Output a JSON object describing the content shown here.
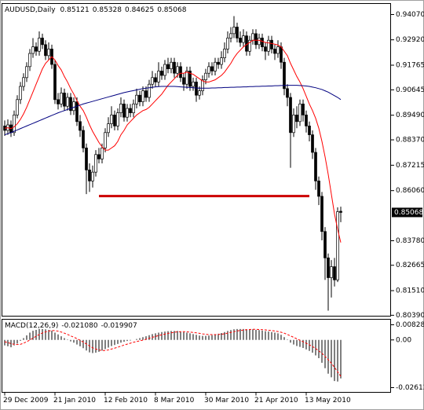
{
  "chart_data": {
    "type": "candlestick",
    "title": "AUDUSD,Daily",
    "categories": [
      "29 Dec 2009",
      null,
      null,
      null,
      null,
      null,
      null,
      null,
      null,
      null,
      null,
      null,
      null,
      null,
      null,
      null,
      "21 Jan 2010",
      null,
      null,
      null,
      null,
      null,
      null,
      null,
      null,
      null,
      null,
      null,
      null,
      null,
      null,
      null,
      "12 Feb 2010",
      null,
      null,
      null,
      null,
      null,
      null,
      null,
      null,
      null,
      null,
      null,
      null,
      null,
      null,
      null,
      "8 Mar 2010",
      null,
      null,
      null,
      null,
      null,
      null,
      null,
      null,
      null,
      null,
      null,
      null,
      null,
      null,
      null,
      "30 Mar 2010",
      null,
      null,
      null,
      null,
      null,
      null,
      null,
      null,
      null,
      null,
      null,
      null,
      null,
      null,
      null,
      "21 Apr 2010",
      null,
      null,
      null,
      null,
      null,
      null,
      null,
      null,
      null,
      null,
      null,
      null,
      null,
      null,
      null,
      "13 May 2010",
      null,
      null,
      null,
      null,
      null,
      null,
      null,
      null,
      null,
      null,
      null
    ],
    "ohlc": [
      [
        0.89,
        0.8925,
        0.8855,
        0.888
      ],
      [
        0.888,
        0.893,
        0.886,
        0.8905
      ],
      [
        0.8905,
        0.8925,
        0.885,
        0.887
      ],
      [
        0.887,
        0.897,
        0.8855,
        0.895
      ],
      [
        0.895,
        0.904,
        0.8935,
        0.902
      ],
      [
        0.902,
        0.91,
        0.9,
        0.908
      ],
      [
        0.908,
        0.914,
        0.906,
        0.912
      ],
      [
        0.912,
        0.919,
        0.91,
        0.917
      ],
      [
        0.917,
        0.925,
        0.915,
        0.923
      ],
      [
        0.923,
        0.93,
        0.921,
        0.926
      ],
      [
        0.926,
        0.928,
        0.922,
        0.924
      ],
      [
        0.924,
        0.933,
        0.922,
        0.93
      ],
      [
        0.93,
        0.932,
        0.925,
        0.927
      ],
      [
        0.927,
        0.929,
        0.92,
        0.922
      ],
      [
        0.922,
        0.928,
        0.92,
        0.925
      ],
      [
        0.925,
        0.927,
        0.916,
        0.918
      ],
      [
        0.918,
        0.92,
        0.9,
        0.902
      ],
      [
        0.902,
        0.905,
        0.8975,
        0.9
      ],
      [
        0.9,
        0.9075,
        0.8985,
        0.905
      ],
      [
        0.905,
        0.907,
        0.897,
        0.899
      ],
      [
        0.899,
        0.905,
        0.897,
        0.903
      ],
      [
        0.903,
        0.905,
        0.895,
        0.897
      ],
      [
        0.897,
        0.903,
        0.895,
        0.901
      ],
      [
        0.901,
        0.903,
        0.89,
        0.892
      ],
      [
        0.892,
        0.895,
        0.885,
        0.888
      ],
      [
        0.888,
        0.89,
        0.878,
        0.88
      ],
      [
        0.88,
        0.882,
        0.859,
        0.87
      ],
      [
        0.87,
        0.873,
        0.86,
        0.865
      ],
      [
        0.865,
        0.872,
        0.862,
        0.869
      ],
      [
        0.869,
        0.879,
        0.867,
        0.877
      ],
      [
        0.877,
        0.88,
        0.873,
        0.875
      ],
      [
        0.875,
        0.882,
        0.873,
        0.88
      ],
      [
        0.88,
        0.889,
        0.878,
        0.887
      ],
      [
        0.887,
        0.894,
        0.885,
        0.891
      ],
      [
        0.891,
        0.899,
        0.889,
        0.895
      ],
      [
        0.895,
        0.897,
        0.888,
        0.89
      ],
      [
        0.89,
        0.898,
        0.888,
        0.896
      ],
      [
        0.896,
        0.903,
        0.894,
        0.9
      ],
      [
        0.9,
        0.902,
        0.892,
        0.894
      ],
      [
        0.894,
        0.9,
        0.892,
        0.898
      ],
      [
        0.898,
        0.9,
        0.894,
        0.896
      ],
      [
        0.896,
        0.902,
        0.894,
        0.9
      ],
      [
        0.9,
        0.907,
        0.898,
        0.904
      ],
      [
        0.904,
        0.906,
        0.899,
        0.901
      ],
      [
        0.901,
        0.908,
        0.899,
        0.906
      ],
      [
        0.906,
        0.908,
        0.901,
        0.903
      ],
      [
        0.903,
        0.911,
        0.901,
        0.909
      ],
      [
        0.909,
        0.915,
        0.907,
        0.912
      ],
      [
        0.912,
        0.914,
        0.908,
        0.91
      ],
      [
        0.91,
        0.919,
        0.908,
        0.915
      ],
      [
        0.915,
        0.917,
        0.911,
        0.913
      ],
      [
        0.913,
        0.92,
        0.911,
        0.918
      ],
      [
        0.918,
        0.921,
        0.914,
        0.916
      ],
      [
        0.916,
        0.921,
        0.914,
        0.919
      ],
      [
        0.919,
        0.921,
        0.912,
        0.914
      ],
      [
        0.914,
        0.919,
        0.912,
        0.917
      ],
      [
        0.917,
        0.919,
        0.91,
        0.912
      ],
      [
        0.912,
        0.914,
        0.906,
        0.909
      ],
      [
        0.909,
        0.917,
        0.907,
        0.915
      ],
      [
        0.915,
        0.917,
        0.906,
        0.908
      ],
      [
        0.908,
        0.912,
        0.906,
        0.91
      ],
      [
        0.91,
        0.912,
        0.901,
        0.904
      ],
      [
        0.904,
        0.908,
        0.902,
        0.906
      ],
      [
        0.906,
        0.913,
        0.904,
        0.911
      ],
      [
        0.911,
        0.916,
        0.909,
        0.914
      ],
      [
        0.914,
        0.919,
        0.912,
        0.917
      ],
      [
        0.917,
        0.919,
        0.913,
        0.915
      ],
      [
        0.915,
        0.921,
        0.913,
        0.919
      ],
      [
        0.919,
        0.921,
        0.916,
        0.918
      ],
      [
        0.918,
        0.924,
        0.916,
        0.921
      ],
      [
        0.921,
        0.928,
        0.919,
        0.925
      ],
      [
        0.925,
        0.933,
        0.923,
        0.93
      ],
      [
        0.93,
        0.935,
        0.928,
        0.932
      ],
      [
        0.932,
        0.94,
        0.93,
        0.935
      ],
      [
        0.935,
        0.937,
        0.928,
        0.93
      ],
      [
        0.93,
        0.933,
        0.926,
        0.928
      ],
      [
        0.928,
        0.934,
        0.926,
        0.931
      ],
      [
        0.931,
        0.933,
        0.922,
        0.924
      ],
      [
        0.924,
        0.931,
        0.922,
        0.929
      ],
      [
        0.929,
        0.934,
        0.927,
        0.932
      ],
      [
        0.932,
        0.934,
        0.925,
        0.927
      ],
      [
        0.927,
        0.932,
        0.925,
        0.93
      ],
      [
        0.93,
        0.932,
        0.924,
        0.926
      ],
      [
        0.926,
        0.928,
        0.92,
        0.924
      ],
      [
        0.924,
        0.931,
        0.922,
        0.929
      ],
      [
        0.929,
        0.931,
        0.923,
        0.925
      ],
      [
        0.925,
        0.927,
        0.92,
        0.923
      ],
      [
        0.923,
        0.929,
        0.921,
        0.926
      ],
      [
        0.926,
        0.928,
        0.916,
        0.919
      ],
      [
        0.919,
        0.921,
        0.904,
        0.907
      ],
      [
        0.907,
        0.909,
        0.899,
        0.903
      ],
      [
        0.903,
        0.905,
        0.871,
        0.887
      ],
      [
        0.887,
        0.898,
        0.885,
        0.895
      ],
      [
        0.895,
        0.899,
        0.889,
        0.892
      ],
      [
        0.892,
        0.902,
        0.89,
        0.9
      ],
      [
        0.9,
        0.902,
        0.892,
        0.895
      ],
      [
        0.895,
        0.897,
        0.887,
        0.89
      ],
      [
        0.89,
        0.892,
        0.883,
        0.886
      ],
      [
        0.886,
        0.888,
        0.875,
        0.878
      ],
      [
        0.878,
        0.88,
        0.861,
        0.865
      ],
      [
        0.865,
        0.867,
        0.854,
        0.858
      ],
      [
        0.858,
        0.86,
        0.838,
        0.842
      ],
      [
        0.842,
        0.844,
        0.82,
        0.83
      ],
      [
        0.83,
        0.832,
        0.806,
        0.821
      ],
      [
        0.821,
        0.829,
        0.812,
        0.826
      ],
      [
        0.826,
        0.83,
        0.817,
        0.82
      ],
      [
        0.82,
        0.853,
        0.819,
        0.851
      ],
      [
        0.85121,
        0.85328,
        0.84625,
        0.85068
      ]
    ],
    "up_color": "#ffffff",
    "down_color": "#000000",
    "lines": [
      {
        "color": "#ff0000",
        "values": [
          0.889,
          0.8892,
          0.8888,
          0.8896,
          0.891,
          0.893,
          0.8955,
          0.8985,
          0.902,
          0.9055,
          0.909,
          0.9125,
          0.916,
          0.9185,
          0.92,
          0.9215,
          0.92,
          0.9175,
          0.9155,
          0.9125,
          0.91,
          0.907,
          0.9045,
          0.9015,
          0.899,
          0.897,
          0.894,
          0.8905,
          0.8875,
          0.885,
          0.8825,
          0.8805,
          0.879,
          0.879,
          0.88,
          0.881,
          0.883,
          0.886,
          0.888,
          0.8905,
          0.892,
          0.8935,
          0.895,
          0.896,
          0.897,
          0.8975,
          0.8985,
          0.9,
          0.9015,
          0.903,
          0.9045,
          0.9065,
          0.9085,
          0.91,
          0.9115,
          0.913,
          0.914,
          0.914,
          0.9145,
          0.914,
          0.9135,
          0.9125,
          0.9115,
          0.9105,
          0.91,
          0.91,
          0.9105,
          0.911,
          0.912,
          0.913,
          0.9145,
          0.9165,
          0.9185,
          0.921,
          0.923,
          0.9245,
          0.926,
          0.927,
          0.928,
          0.929,
          0.929,
          0.929,
          0.9285,
          0.928,
          0.9278,
          0.9275,
          0.9272,
          0.9268,
          0.926,
          0.924,
          0.922,
          0.9185,
          0.9155,
          0.9125,
          0.91,
          0.907,
          0.9035,
          0.9,
          0.897,
          0.8935,
          0.889,
          0.883,
          0.876,
          0.868,
          0.859,
          0.85,
          0.843,
          0.837
        ]
      },
      {
        "color": "#000080",
        "values": [
          0.886,
          0.8865,
          0.887,
          0.8876,
          0.8882,
          0.8888,
          0.8894,
          0.89,
          0.8906,
          0.8912,
          0.8918,
          0.8924,
          0.893,
          0.8936,
          0.8942,
          0.8948,
          0.8954,
          0.896,
          0.8965,
          0.897,
          0.8975,
          0.898,
          0.8985,
          0.899,
          0.8995,
          0.9,
          0.9004,
          0.9008,
          0.9012,
          0.9016,
          0.902,
          0.9024,
          0.9028,
          0.9032,
          0.9036,
          0.904,
          0.9044,
          0.9048,
          0.9052,
          0.9055,
          0.9058,
          0.9061,
          0.9064,
          0.9067,
          0.907,
          0.9072,
          0.9074,
          0.9076,
          0.9078,
          0.9079,
          0.908,
          0.908,
          0.908,
          0.908,
          0.908,
          0.9079,
          0.9078,
          0.9077,
          0.9076,
          0.9075,
          0.9074,
          0.9073,
          0.9072,
          0.9072,
          0.9072,
          0.9072,
          0.9073,
          0.9073,
          0.9074,
          0.9074,
          0.9075,
          0.9075,
          0.9076,
          0.9076,
          0.9077,
          0.9077,
          0.9078,
          0.9078,
          0.9079,
          0.9079,
          0.908,
          0.908,
          0.9081,
          0.9081,
          0.9082,
          0.9082,
          0.9083,
          0.9083,
          0.9084,
          0.9084,
          0.9085,
          0.9085,
          0.9085,
          0.9085,
          0.9084,
          0.9083,
          0.9082,
          0.908,
          0.9077,
          0.9074,
          0.907,
          0.9066,
          0.906,
          0.9054,
          0.9046,
          0.9038,
          0.903,
          0.902
        ]
      }
    ],
    "hline": {
      "value": 0.8581,
      "start": 30,
      "end": 97,
      "color": "#cc0000"
    },
    "ylim": [
      0.8035,
      0.9457
    ],
    "yticks": [
      {
        "value": 0.9407,
        "label": "0.94070"
      },
      {
        "value": 0.9292,
        "label": "0.92920"
      },
      0.91765,
      0.90645,
      {
        "value": 0.8949,
        "label": "0.89490"
      },
      {
        "value": 0.8837,
        "label": "0.88370"
      },
      0.87215,
      {
        "value": 0.8606,
        "label": "0.86060"
      },
      {
        "value": 0.8378,
        "label": "0.83780"
      },
      0.82665,
      {
        "value": 0.8151,
        "label": "0.81510"
      },
      {
        "value": 0.8039,
        "label": "0.80390"
      }
    ],
    "macd": {
      "title": "MACD(12,26,9)",
      "legend_values": [
        {
          "value": -0.02108,
          "label": "-0.021080"
        },
        {
          "value": -0.019907,
          "label": "-0.019907"
        }
      ],
      "histogram_color": "#000000",
      "signal_color": "#ff0000",
      "histogram": [
        -0.003,
        -0.0035,
        -0.004,
        -0.003,
        -0.002,
        -0.0005,
        0.001,
        0.0025,
        0.004,
        0.005,
        0.0055,
        0.006,
        0.006,
        0.0058,
        0.0055,
        0.005,
        0.004,
        0.003,
        0.002,
        0.001,
        0.0002,
        -0.0008,
        -0.0015,
        -0.0025,
        -0.0035,
        -0.0045,
        -0.0058,
        -0.0068,
        -0.0072,
        -0.007,
        -0.0065,
        -0.0058,
        -0.005,
        -0.0042,
        -0.0034,
        -0.0028,
        -0.0022,
        -0.0015,
        -0.001,
        -0.0006,
        -0.0003,
        0.0,
        0.0005,
        0.001,
        0.0015,
        0.002,
        0.0026,
        0.0032,
        0.0036,
        0.004,
        0.0043,
        0.0046,
        0.0048,
        0.0049,
        0.0049,
        0.0049,
        0.0046,
        0.0042,
        0.004,
        0.0036,
        0.0032,
        0.0028,
        0.0024,
        0.0022,
        0.0022,
        0.0024,
        0.0026,
        0.003,
        0.0034,
        0.0038,
        0.0043,
        0.0049,
        0.0054,
        0.0058,
        0.006,
        0.006,
        0.006,
        0.0058,
        0.0057,
        0.0058,
        0.0055,
        0.0054,
        0.0051,
        0.0048,
        0.0046,
        0.0043,
        0.004,
        0.0036,
        0.0028,
        0.0015,
        0.0002,
        -0.0015,
        -0.0025,
        -0.0033,
        -0.0038,
        -0.0044,
        -0.0052,
        -0.006,
        -0.007,
        -0.0085,
        -0.01,
        -0.0125,
        -0.0155,
        -0.0185,
        -0.0205,
        -0.0225,
        -0.0228,
        -0.02108
      ],
      "signal": [
        -0.001,
        -0.0015,
        -0.002,
        -0.0024,
        -0.0025,
        -0.0024,
        -0.0018,
        -0.001,
        0.0,
        0.001,
        0.002,
        0.003,
        0.0038,
        0.0044,
        0.0049,
        0.0051,
        0.0051,
        0.0048,
        0.0043,
        0.0037,
        0.003,
        0.0022,
        0.0015,
        0.0007,
        -0.0002,
        -0.0012,
        -0.0022,
        -0.0033,
        -0.0043,
        -0.005,
        -0.0055,
        -0.0058,
        -0.0058,
        -0.0055,
        -0.005,
        -0.0045,
        -0.004,
        -0.0034,
        -0.0028,
        -0.0023,
        -0.0018,
        -0.0013,
        -0.0009,
        -0.0005,
        -0.0001,
        0.0004,
        0.0009,
        0.0014,
        0.0019,
        0.0024,
        0.0028,
        0.0032,
        0.0036,
        0.0039,
        0.0042,
        0.0044,
        0.0045,
        0.0045,
        0.0044,
        0.0043,
        0.0041,
        0.0039,
        0.0036,
        0.0033,
        0.0031,
        0.0029,
        0.0029,
        0.0029,
        0.003,
        0.0031,
        0.0034,
        0.0037,
        0.0041,
        0.0045,
        0.0049,
        0.0052,
        0.0054,
        0.0056,
        0.0057,
        0.0058,
        0.0058,
        0.0057,
        0.0056,
        0.0055,
        0.0053,
        0.0051,
        0.0049,
        0.0046,
        0.0042,
        0.0037,
        0.003,
        0.0022,
        0.0014,
        0.0006,
        -0.0002,
        -0.001,
        -0.0018,
        -0.0027,
        -0.0036,
        -0.0047,
        -0.006,
        -0.0073,
        -0.009,
        -0.0108,
        -0.0128,
        -0.015,
        -0.0175,
        -0.019907
      ],
      "ylim": [
        -0.0287,
        0.0113
      ],
      "yticks": [
        0.008288,
        {
          "value": 0,
          "label": "0.00"
        },
        -0.02612
      ]
    }
  }
}
